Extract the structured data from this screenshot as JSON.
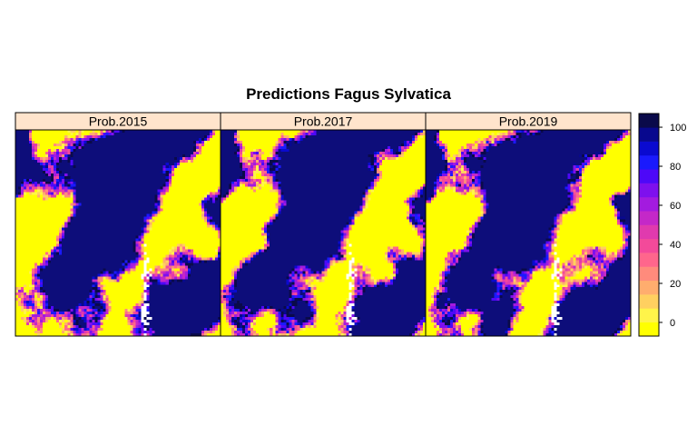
{
  "chart_data": {
    "type": "heatmap",
    "title": "Predictions Fagus Sylvatica",
    "panels": [
      {
        "label": "Prob.2015"
      },
      {
        "label": "Prob.2017"
      },
      {
        "label": "Prob.2019"
      }
    ],
    "colorbar": {
      "range": [
        -7,
        107
      ],
      "ticks": [
        0,
        20,
        40,
        60,
        80,
        100
      ],
      "colors": [
        "#ffff00",
        "#fff44a",
        "#ffd060",
        "#ffad6e",
        "#ff8b7c",
        "#ff668c",
        "#f34a9a",
        "#e03aae",
        "#c428c8",
        "#a31bdf",
        "#7e10ee",
        "#4d08f8",
        "#1a1afd",
        "#0a0ad0",
        "#08088e",
        "#0a0a4a"
      ]
    },
    "colors": {
      "strip": "#ffe4cc",
      "border": "#000000",
      "low": "#ffff00",
      "high": "#0d0d7a",
      "nodata": "#ffffff"
    }
  }
}
